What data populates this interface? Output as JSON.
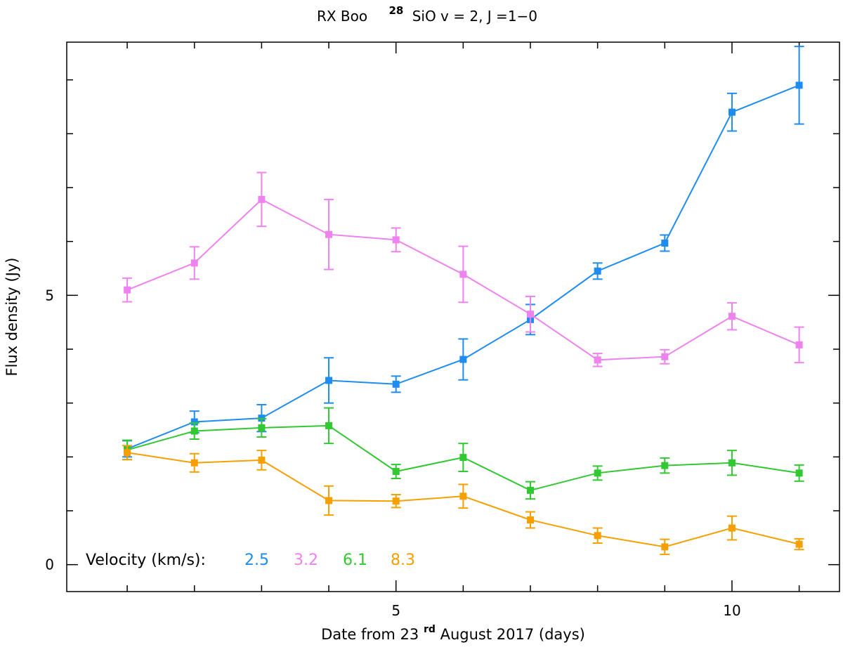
{
  "chart_data": {
    "type": "line",
    "title": {
      "prefix": "RX Boo",
      "iso_sup": "28",
      "rest": "SiO v = 2, J =1−0"
    },
    "xlabel": {
      "before": "Date from 23",
      "sup": "rd",
      "after": " August 2017 (days)"
    },
    "ylabel": "Flux density (Jy)",
    "xlim": [
      0.1,
      11.6
    ],
    "ylim": [
      -0.5,
      9.7
    ],
    "x_ticks": [
      5,
      10
    ],
    "y_ticks": [
      0,
      5
    ],
    "x_minor_ticks": [
      1,
      2,
      3,
      4,
      5,
      6,
      7,
      8,
      9,
      10,
      11
    ],
    "y_minor_ticks": [
      0,
      1,
      2,
      3,
      4,
      5,
      6,
      7,
      8,
      9
    ],
    "legend": {
      "label": "Velocity (km/s):",
      "placement": "bottom-left"
    },
    "x": [
      1,
      2,
      3,
      4,
      5,
      6,
      7,
      8,
      9,
      10,
      11
    ],
    "series": [
      {
        "name": "2.5",
        "color": "#1e8cf0",
        "values": [
          2.15,
          2.65,
          2.72,
          3.42,
          3.35,
          3.81,
          4.55,
          5.45,
          5.97,
          8.4,
          8.9
        ],
        "errors": [
          0.15,
          0.2,
          0.25,
          0.42,
          0.15,
          0.38,
          0.28,
          0.15,
          0.15,
          0.35,
          0.72
        ]
      },
      {
        "name": "3.2",
        "color": "#ee82ee",
        "values": [
          5.1,
          5.6,
          6.78,
          6.13,
          6.03,
          5.39,
          4.65,
          3.8,
          3.86,
          4.61,
          4.08
        ],
        "errors": [
          0.22,
          0.3,
          0.5,
          0.65,
          0.22,
          0.52,
          0.33,
          0.12,
          0.13,
          0.25,
          0.33
        ]
      },
      {
        "name": "6.1",
        "color": "#32c832",
        "values": [
          2.13,
          2.48,
          2.54,
          2.58,
          1.73,
          1.99,
          1.38,
          1.7,
          1.84,
          1.89,
          1.7
        ],
        "errors": [
          0.18,
          0.15,
          0.17,
          0.33,
          0.13,
          0.26,
          0.16,
          0.13,
          0.14,
          0.23,
          0.15
        ]
      },
      {
        "name": "8.3",
        "color": "#f5a000",
        "values": [
          2.08,
          1.89,
          1.94,
          1.19,
          1.18,
          1.27,
          0.83,
          0.54,
          0.33,
          0.68,
          0.38
        ],
        "errors": [
          0.13,
          0.17,
          0.18,
          0.27,
          0.12,
          0.22,
          0.15,
          0.14,
          0.14,
          0.22,
          0.1
        ]
      }
    ]
  }
}
